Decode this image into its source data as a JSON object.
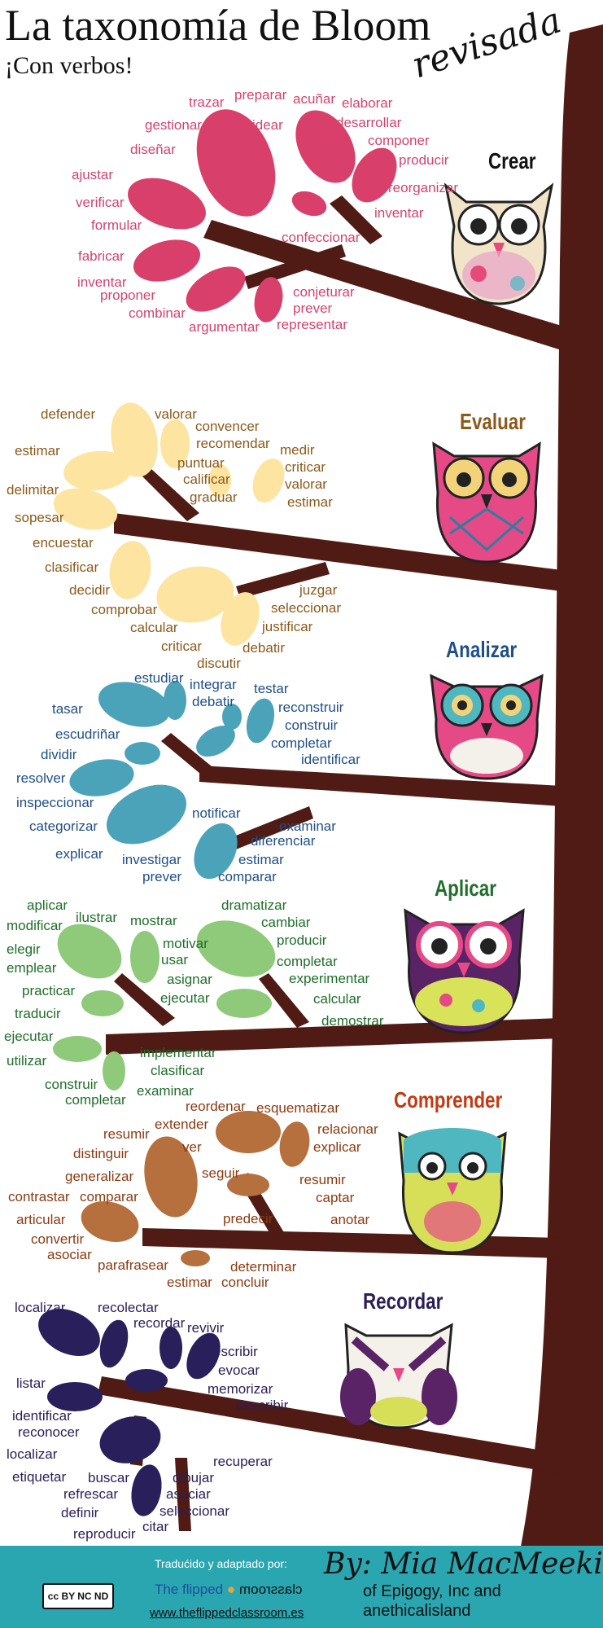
{
  "header": {
    "title": "La taxonomía de Bloom",
    "subtitle": "¡Con verbos!",
    "revisada": "revisada"
  },
  "levels": [
    {
      "name": "Crear",
      "color": "#d3436e",
      "verbs": [
        "trazar",
        "preparar",
        "acuñar",
        "elaborar",
        "gestionar",
        "idear",
        "desarrollar",
        "diseñar",
        "componer",
        "producir",
        "ajustar",
        "reorganizar",
        "verificar",
        "formular",
        "inventar",
        "confeccionar",
        "fabricar",
        "inventar",
        "proponer",
        "conjeturar",
        "combinar",
        "prever",
        "argumentar",
        "representar"
      ]
    },
    {
      "name": "Evaluar",
      "color": "#8a5a1b",
      "verbs": [
        "defender",
        "valorar",
        "convencer",
        "estimar",
        "recomendar",
        "medir",
        "puntuar",
        "criticar",
        "calificar",
        "valorar",
        "delimitar",
        "graduar",
        "estimar",
        "sopesar",
        "encuestar",
        "clasificar",
        "decidir",
        "juzgar",
        "comprobar",
        "seleccionar",
        "calcular",
        "justificar",
        "criticar",
        "debatir",
        "discutir"
      ]
    },
    {
      "name": "Analizar",
      "color": "#1f4f86",
      "verbs": [
        "estudiar",
        "integrar",
        "testar",
        "tasar",
        "debatir",
        "reconstruir",
        "construir",
        "escudriñar",
        "completar",
        "dividir",
        "identificar",
        "resolver",
        "inspeccionar",
        "notificar",
        "categorizar",
        "examinar",
        "diferenciar",
        "explicar",
        "investigar",
        "estimar",
        "prever",
        "comparar"
      ]
    },
    {
      "name": "Aplicar",
      "color": "#1f6e2a",
      "verbs": [
        "aplicar",
        "dramatizar",
        "modificar",
        "ilustrar",
        "mostrar",
        "cambiar",
        "producir",
        "elegir",
        "motivar",
        "emplear",
        "usar",
        "completar",
        "practicar",
        "asignar",
        "experimentar",
        "traducir",
        "ejecutar",
        "calcular",
        "ejecutar",
        "demostrar",
        "utilizar",
        "implementar",
        "clasificar",
        "construir",
        "examinar",
        "completar"
      ]
    },
    {
      "name": "Comprender",
      "color": "#8a3b12",
      "verbs": [
        "reordenar",
        "esquematizar",
        "extender",
        "relacionar",
        "resumir",
        "ver",
        "explicar",
        "distinguir",
        "seguir",
        "generalizar",
        "resumir",
        "contrastar",
        "comparar",
        "captar",
        "articular",
        "predecir",
        "anotar",
        "convertir",
        "asociar",
        "parafrasear",
        "determinar",
        "estimar",
        "concluir"
      ]
    },
    {
      "name": "Recordar",
      "color": "#2b1e55",
      "verbs": [
        "localizar",
        "recolectar",
        "recordar",
        "revivir",
        "escribir",
        "evocar",
        "listar",
        "memorizar",
        "describir",
        "identificar",
        "reconocer",
        "localizar",
        "recuperar",
        "etiquetar",
        "buscar",
        "dibujar",
        "refrescar",
        "asociar",
        "definir",
        "seleccionar",
        "reproducir",
        "citar"
      ]
    }
  ],
  "footer": {
    "translated": "Tradućido y adaptado por:",
    "flipped": "The flipped",
    "classroom": "classroom",
    "website": "www.theflippedclassroom.es",
    "by": "By: Mia MacMeekin",
    "org1": "of Epigogy, Inc and",
    "org2": "anethicalisland",
    "license": "cc BY NC ND"
  }
}
